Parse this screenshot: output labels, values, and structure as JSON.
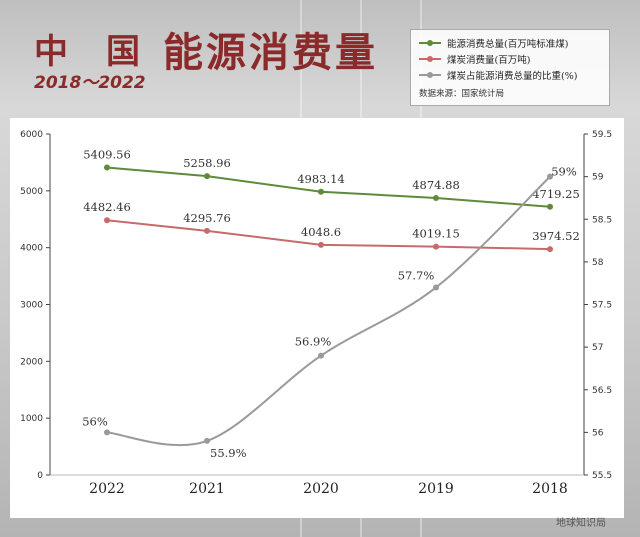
{
  "header": {
    "title_prefix": "中　国",
    "title_main": "能源消费量",
    "subtitle": "2018～2022"
  },
  "legend": {
    "items": [
      {
        "label": "能源消费总量(百万吨标准煤)",
        "color": "#5f8a3a"
      },
      {
        "label": "煤炭消费量(百万吨)",
        "color": "#c76a6a"
      },
      {
        "label": "煤炭占能源消费总量的比重(%)",
        "color": "#9a9a9a"
      }
    ],
    "source": "数据来源：国家统计局"
  },
  "watermark": "地球知识局",
  "chart_data": {
    "type": "line",
    "categories": [
      "2022",
      "2021",
      "2020",
      "2019",
      "2018"
    ],
    "yleft": {
      "min": 0,
      "max": 6000,
      "ticks": [
        0,
        1000,
        2000,
        3000,
        4000,
        5000,
        6000
      ]
    },
    "yright": {
      "min": 55.5,
      "max": 59.5,
      "ticks": [
        "55.5",
        "56",
        "56.5",
        "57",
        "57.5",
        "58",
        "58.5",
        "59",
        "59.5"
      ]
    },
    "series": [
      {
        "name": "能源消费总量(百万吨标准煤)",
        "axis": "left",
        "color": "#5f8a3a",
        "values": [
          5409.56,
          5258.96,
          4983.14,
          4874.88,
          4719.25
        ],
        "labels": [
          "5409.56",
          "5258.96",
          "4983.14",
          "4874.88",
          "4719.25"
        ]
      },
      {
        "name": "煤炭消费量(百万吨)",
        "axis": "left",
        "color": "#c76a6a",
        "values": [
          4482.46,
          4295.76,
          4048.6,
          4019.15,
          3974.52
        ],
        "labels": [
          "4482.46",
          "4295.76",
          "4048.6",
          "4019.15",
          "3974.52"
        ]
      },
      {
        "name": "煤炭占能源消费总量的比重(%)",
        "axis": "right",
        "color": "#9a9a9a",
        "smooth": true,
        "values": [
          56,
          55.9,
          56.9,
          57.7,
          59
        ],
        "labels": [
          "56%",
          "55.9%",
          "56.9%",
          "57.7%",
          "59%"
        ]
      }
    ]
  }
}
